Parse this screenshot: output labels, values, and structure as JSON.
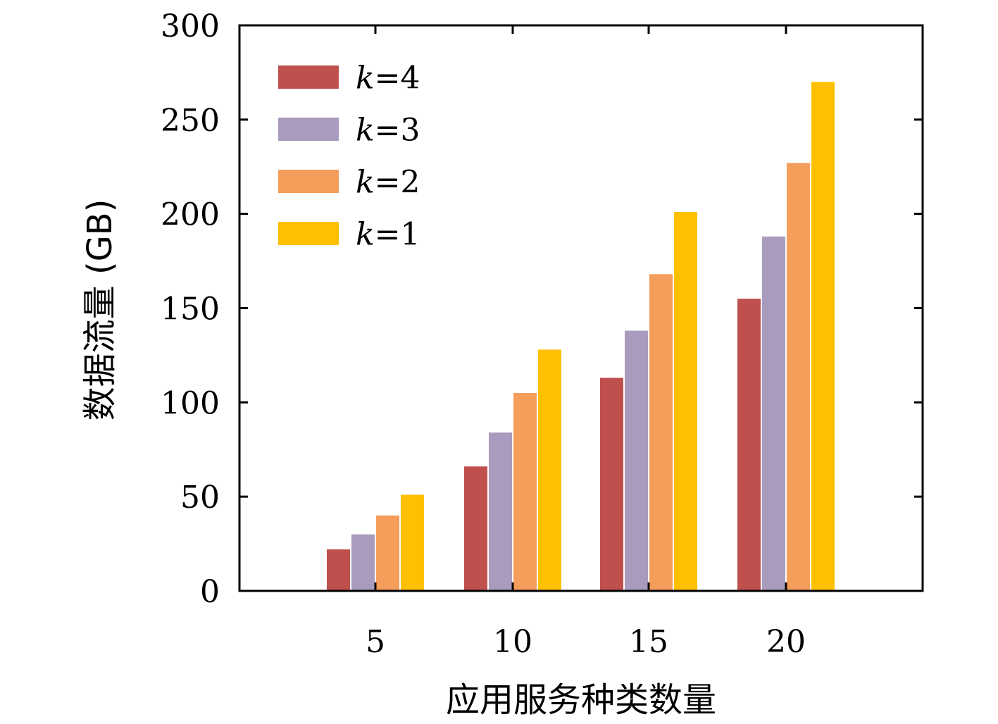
{
  "chart_data": {
    "type": "bar",
    "categories": [
      "5",
      "10",
      "15",
      "20"
    ],
    "series": [
      {
        "name": "k=4",
        "color": "#c0504d",
        "values": [
          22,
          66,
          113,
          155
        ]
      },
      {
        "name": "k=3",
        "color": "#a99bbd",
        "values": [
          30,
          84,
          138,
          188
        ]
      },
      {
        "name": "k=2",
        "color": "#f59d5a",
        "values": [
          40,
          105,
          168,
          227
        ]
      },
      {
        "name": "k=1",
        "color": "#ffc000",
        "values": [
          51,
          128,
          201,
          270
        ]
      }
    ],
    "xlabel": "应用服务种类数量",
    "ylabel": "数据流量 (GB)",
    "ylim": [
      0,
      300
    ],
    "yticks": [
      "0",
      "50",
      "100",
      "150",
      "200",
      "250",
      "300"
    ],
    "legend_position": "top-left",
    "grid": false
  }
}
